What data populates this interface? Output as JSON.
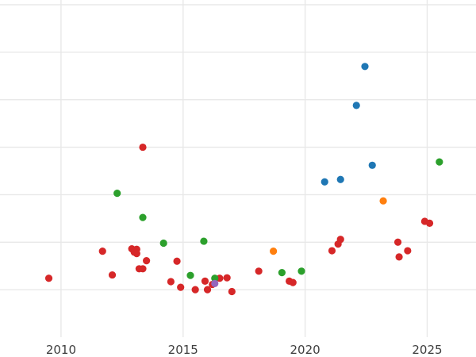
{
  "chart_data": {
    "type": "scatter",
    "title": "",
    "xlabel": "",
    "ylabel": "",
    "xlim": [
      2007.5,
      2027.0
    ],
    "ylim": [
      0.0,
      7.1
    ],
    "grid": true,
    "x_ticks": [
      2010,
      2015,
      2020,
      2025
    ],
    "x_tick_labels": [
      "2010",
      "2015",
      "2020",
      "2025"
    ],
    "y_gridlines": [
      1,
      2,
      3,
      4,
      5,
      6,
      7
    ],
    "y_tick_labels_visible": false,
    "legend": "none",
    "colors": {
      "red": "#d62728",
      "green": "#2ca02c",
      "blue": "#1f77b4",
      "orange": "#ff7f0e",
      "purple": "#9467bd"
    },
    "series": [
      {
        "color": "red",
        "points": [
          {
            "x": 2009.5,
            "y": 1.24
          },
          {
            "x": 2011.7,
            "y": 1.81
          },
          {
            "x": 2012.1,
            "y": 1.31
          },
          {
            "x": 2012.9,
            "y": 1.86
          },
          {
            "x": 2013.1,
            "y": 1.85
          },
          {
            "x": 2013.0,
            "y": 1.79
          },
          {
            "x": 2013.1,
            "y": 1.76
          },
          {
            "x": 2013.2,
            "y": 1.44
          },
          {
            "x": 2013.35,
            "y": 1.44
          },
          {
            "x": 2013.5,
            "y": 1.61
          },
          {
            "x": 2013.35,
            "y": 4.0
          },
          {
            "x": 2014.5,
            "y": 1.17
          },
          {
            "x": 2014.75,
            "y": 1.6
          },
          {
            "x": 2014.9,
            "y": 1.05
          },
          {
            "x": 2015.5,
            "y": 1.0
          },
          {
            "x": 2015.9,
            "y": 1.18
          },
          {
            "x": 2016.0,
            "y": 1.0
          },
          {
            "x": 2016.2,
            "y": 1.11
          },
          {
            "x": 2016.5,
            "y": 1.24
          },
          {
            "x": 2016.8,
            "y": 1.25
          },
          {
            "x": 2017.0,
            "y": 0.96
          },
          {
            "x": 2018.1,
            "y": 1.39
          },
          {
            "x": 2019.35,
            "y": 1.18
          },
          {
            "x": 2019.5,
            "y": 1.15
          },
          {
            "x": 2021.1,
            "y": 1.82
          },
          {
            "x": 2021.35,
            "y": 1.96
          },
          {
            "x": 2021.45,
            "y": 2.06
          },
          {
            "x": 2023.8,
            "y": 2.0
          },
          {
            "x": 2023.85,
            "y": 1.69
          },
          {
            "x": 2024.2,
            "y": 1.82
          },
          {
            "x": 2024.9,
            "y": 2.44
          },
          {
            "x": 2025.1,
            "y": 2.4
          }
        ]
      },
      {
        "color": "green",
        "points": [
          {
            "x": 2012.3,
            "y": 3.03
          },
          {
            "x": 2013.35,
            "y": 2.52
          },
          {
            "x": 2014.2,
            "y": 1.98
          },
          {
            "x": 2015.3,
            "y": 1.3
          },
          {
            "x": 2015.85,
            "y": 2.02
          },
          {
            "x": 2016.3,
            "y": 1.24
          },
          {
            "x": 2019.05,
            "y": 1.36
          },
          {
            "x": 2019.85,
            "y": 1.39
          },
          {
            "x": 2025.5,
            "y": 3.69
          }
        ]
      },
      {
        "color": "blue",
        "points": [
          {
            "x": 2020.8,
            "y": 3.27
          },
          {
            "x": 2021.45,
            "y": 3.32
          },
          {
            "x": 2022.1,
            "y": 4.88
          },
          {
            "x": 2022.45,
            "y": 5.7
          },
          {
            "x": 2022.75,
            "y": 3.62
          }
        ]
      },
      {
        "color": "orange",
        "points": [
          {
            "x": 2018.7,
            "y": 1.81
          },
          {
            "x": 2023.2,
            "y": 2.87
          }
        ]
      },
      {
        "color": "purple",
        "points": [
          {
            "x": 2016.3,
            "y": 1.13
          }
        ]
      }
    ]
  }
}
